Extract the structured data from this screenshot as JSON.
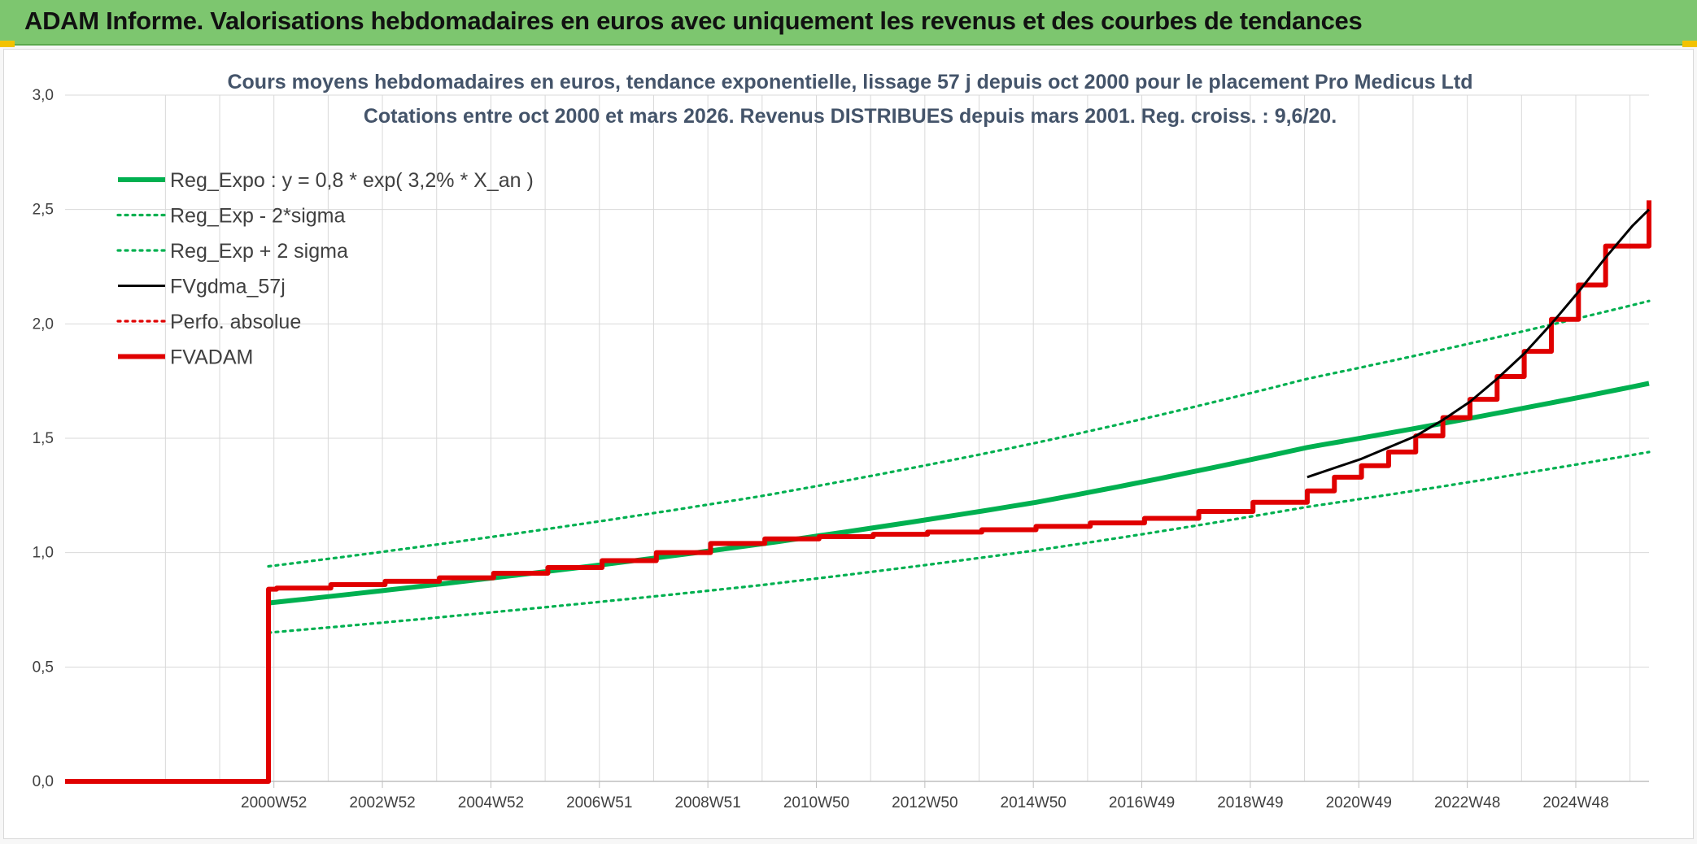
{
  "banner": {
    "title": "ADAM Informe. Valorisations hebdomadaires en euros avec uniquement les revenus et des courbes de tendances"
  },
  "colors": {
    "banner_bg": "#7dc66f",
    "reg_expo": "#00b050",
    "fvgdma": "#000000",
    "fvadam": "#e00000",
    "perfo": "#e00000",
    "grid": "#d9d9d9",
    "title": "#44546a"
  },
  "chart_data": {
    "type": "line",
    "title": "Cours moyens hebdomadaires en euros, tendance exponentielle, lissage 57 j depuis oct 2000 pour le placement Pro Medicus Ltd",
    "subtitle": "Cotations entre oct 2000 et mars 2026. Revenus DISTRIBUES depuis mars 2001. Reg. croiss. : 9,6/20.",
    "xlabel": "",
    "ylabel": "",
    "ylim": [
      0,
      3
    ],
    "y_ticks": [
      "0,0",
      "0,5",
      "1,0",
      "1,5",
      "2,0",
      "2,5",
      "3,0"
    ],
    "x_range": [
      1997.1,
      2026.3
    ],
    "x_ticks": [
      {
        "label": "2000W52",
        "x": 2000.95
      },
      {
        "label": "2002W52",
        "x": 2002.95
      },
      {
        "label": "2004W52",
        "x": 2004.95
      },
      {
        "label": "2006W51",
        "x": 2006.95
      },
      {
        "label": "2008W51",
        "x": 2008.95
      },
      {
        "label": "2010W50",
        "x": 2010.95
      },
      {
        "label": "2012W50",
        "x": 2012.95
      },
      {
        "label": "2014W50",
        "x": 2014.95
      },
      {
        "label": "2016W49",
        "x": 2016.95
      },
      {
        "label": "2018W49",
        "x": 2018.95
      },
      {
        "label": "2020W49",
        "x": 2020.95
      },
      {
        "label": "2022W48",
        "x": 2022.95
      },
      {
        "label": "2024W48",
        "x": 2024.95
      }
    ],
    "grid": true,
    "legend_position": "top-left",
    "series": [
      {
        "name": "Reg_Expo : y = 0,8 * exp( 3,2% *  X_an )",
        "style": "solid-thick",
        "color": "#00b050",
        "x": [
          2000.85,
          2005,
          2010,
          2015,
          2020,
          2026.3
        ],
        "y": [
          0.78,
          0.89,
          1.04,
          1.22,
          1.46,
          1.74
        ]
      },
      {
        "name": "Reg_Exp - 2*sigma",
        "style": "dotted",
        "color": "#00b050",
        "x": [
          2000.85,
          2005,
          2010,
          2015,
          2020,
          2026.3
        ],
        "y": [
          0.65,
          0.74,
          0.86,
          1.01,
          1.2,
          1.44
        ]
      },
      {
        "name": "Reg_Exp + 2 sigma",
        "style": "dotted",
        "color": "#00b050",
        "x": [
          2000.85,
          2005,
          2010,
          2015,
          2020,
          2026.3
        ],
        "y": [
          0.94,
          1.07,
          1.25,
          1.48,
          1.76,
          2.1
        ]
      },
      {
        "name": "FVgdma_57j",
        "style": "solid",
        "color": "#000000",
        "x": [
          2020.0,
          2021.0,
          2022.0,
          2022.5,
          2023.0,
          2023.5,
          2024.0,
          2024.5,
          2025.0,
          2025.5,
          2026.0,
          2026.3
        ],
        "y": [
          1.33,
          1.41,
          1.51,
          1.58,
          1.66,
          1.76,
          1.87,
          2.0,
          2.14,
          2.29,
          2.43,
          2.5
        ]
      },
      {
        "name": "Perfo. absolue",
        "style": "dotted",
        "color": "#e00000",
        "x": [],
        "y": []
      },
      {
        "name": "FVADAM",
        "style": "solid-thick",
        "color": "#e00000",
        "x": [
          1997.1,
          2000.85,
          2000.85,
          2001,
          2002,
          2003,
          2004,
          2005,
          2006,
          2007,
          2008,
          2009,
          2010,
          2011,
          2012,
          2013,
          2014,
          2015,
          2016,
          2017,
          2018,
          2019,
          2020,
          2020.5,
          2021,
          2021.5,
          2022,
          2022.5,
          2023,
          2023.5,
          2024,
          2024.5,
          2025,
          2025.5,
          2026,
          2026.3
        ],
        "y": [
          0,
          0,
          0.84,
          0.845,
          0.86,
          0.875,
          0.89,
          0.91,
          0.935,
          0.965,
          1.0,
          1.04,
          1.06,
          1.07,
          1.08,
          1.09,
          1.1,
          1.115,
          1.13,
          1.15,
          1.18,
          1.22,
          1.27,
          1.33,
          1.38,
          1.44,
          1.51,
          1.59,
          1.67,
          1.77,
          1.88,
          2.02,
          2.17,
          2.34,
          2.34,
          2.54
        ]
      }
    ]
  }
}
